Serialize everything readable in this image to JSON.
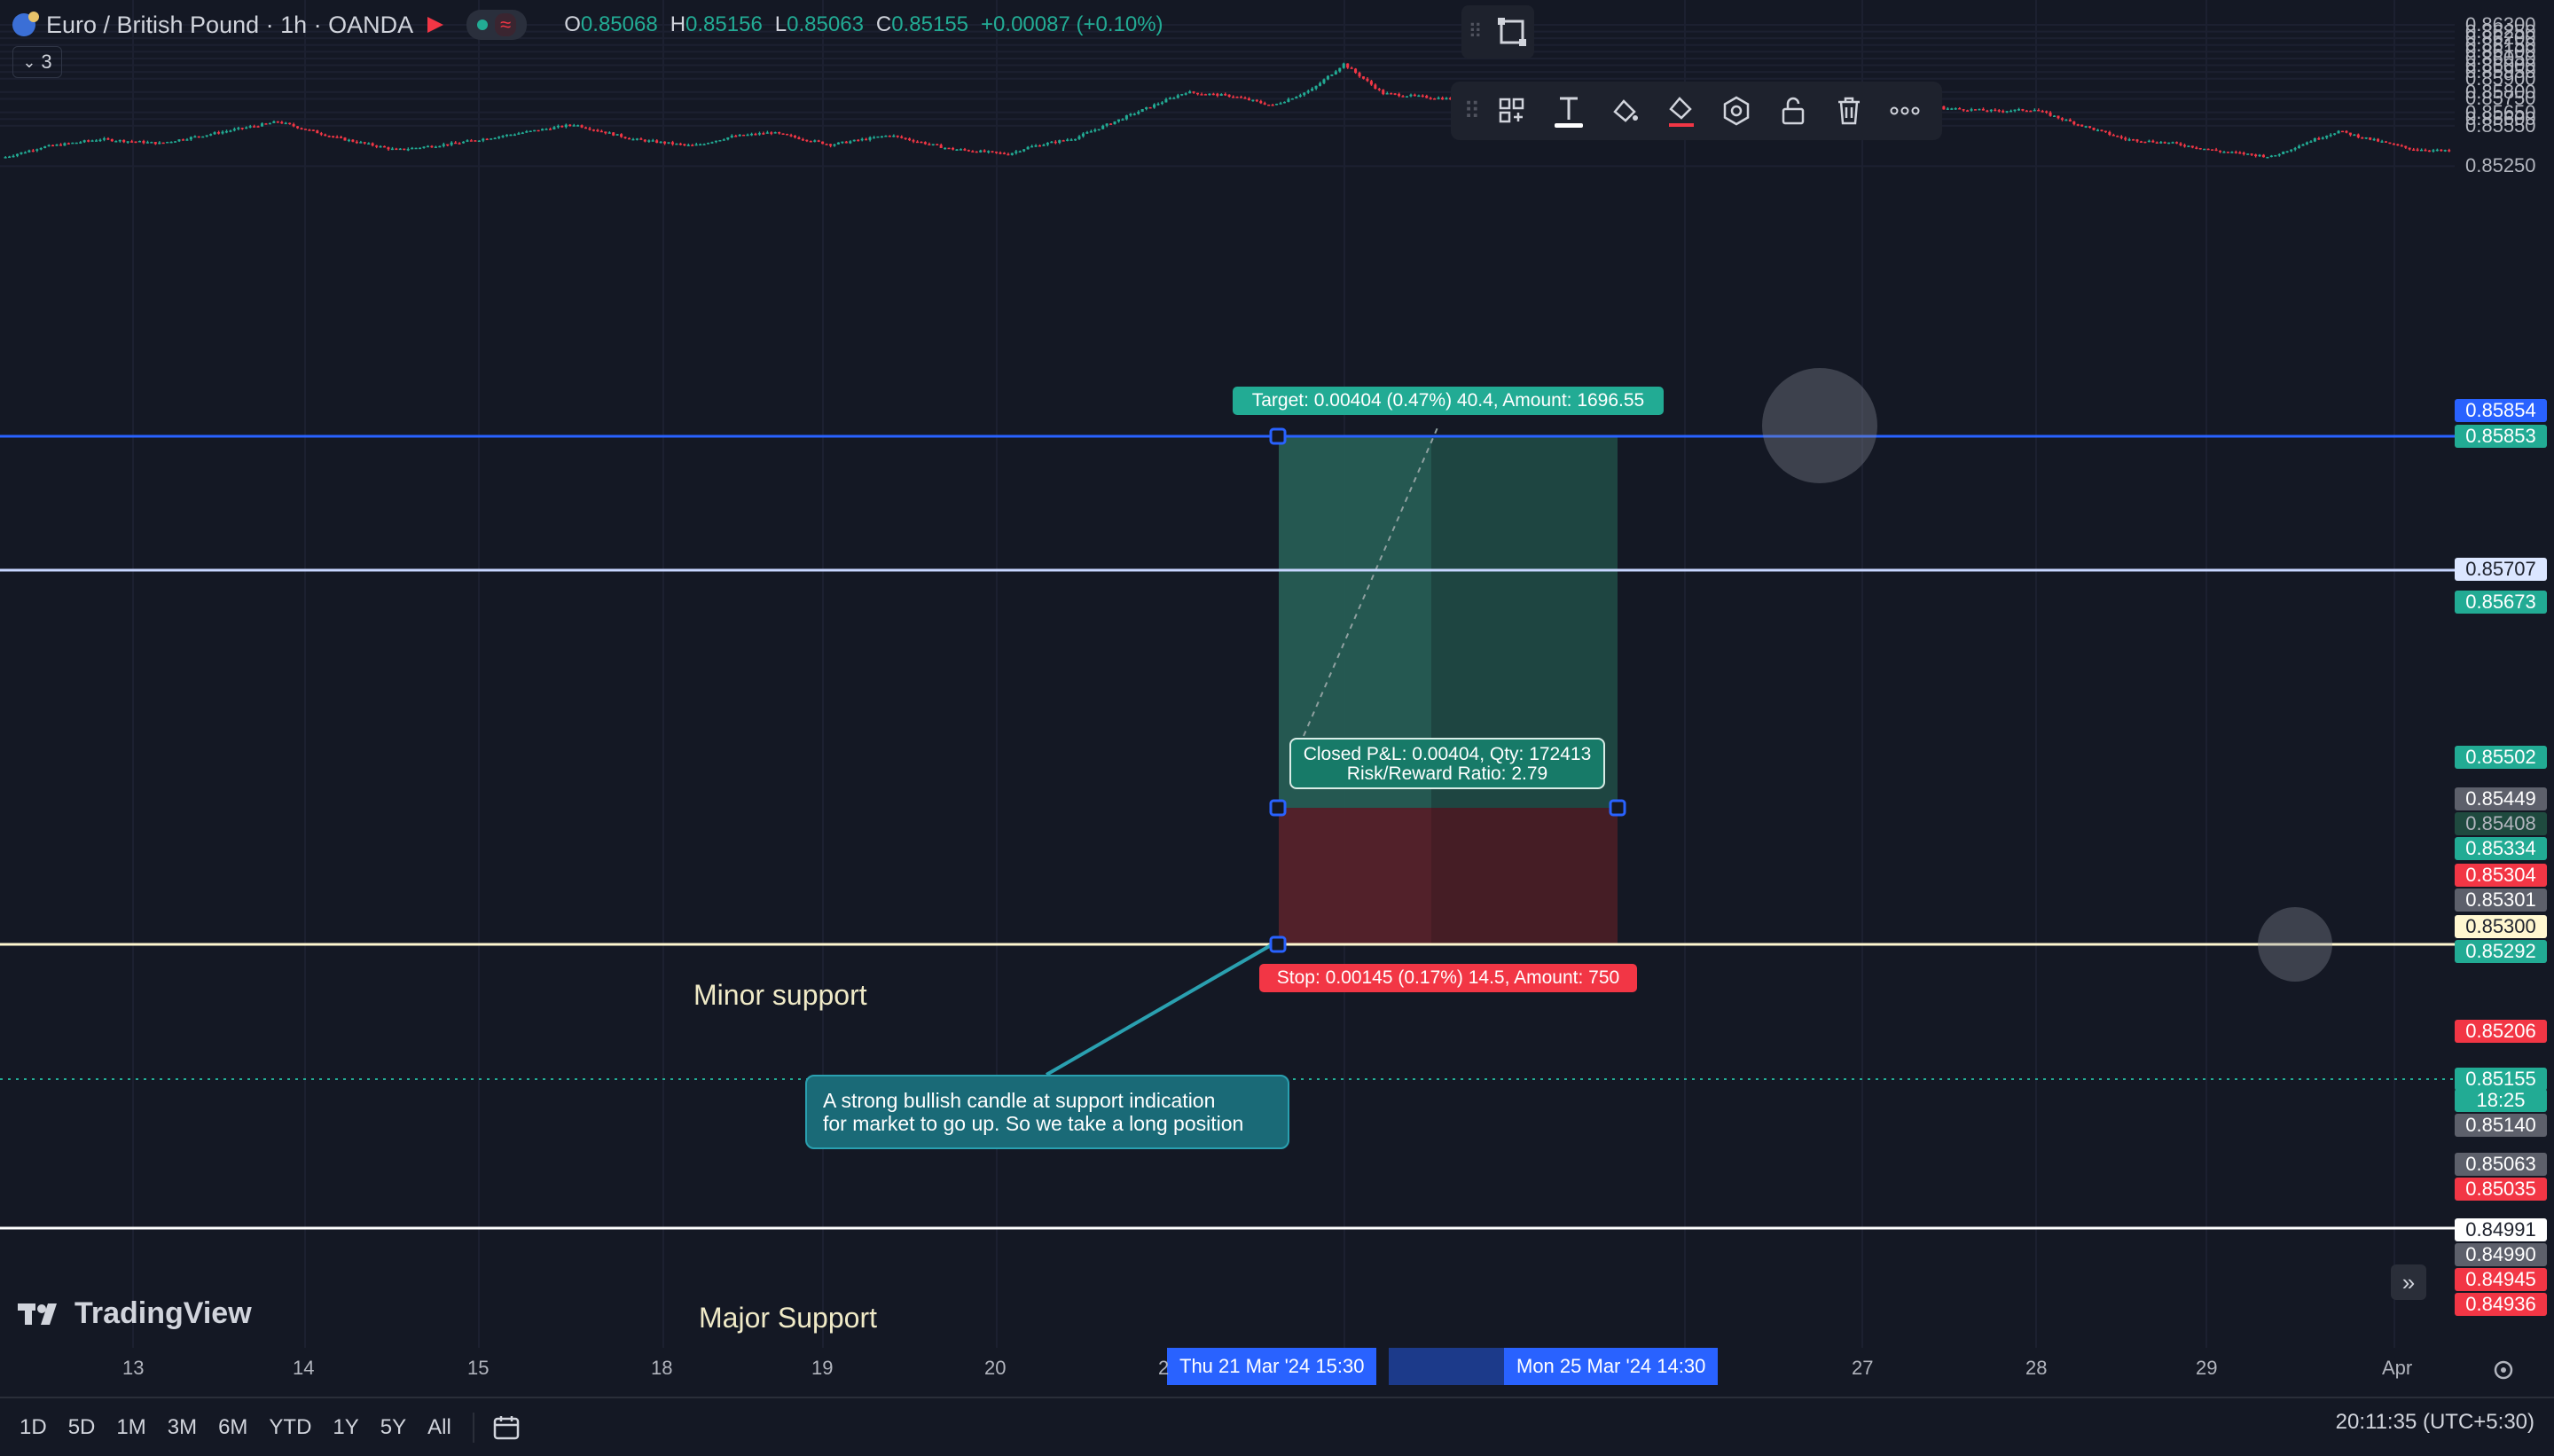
{
  "header": {
    "symbol": "Euro / British Pound · 1h · OANDA",
    "ohlc": [
      {
        "k": "O",
        "v": "0.85068"
      },
      {
        "k": "H",
        "v": "0.85156"
      },
      {
        "k": "L",
        "v": "0.85063"
      },
      {
        "k": "C",
        "v": "0.85155"
      },
      {
        "k": "",
        "v": "+0.00087 (+0.10%)"
      }
    ],
    "indicator_count": "3"
  },
  "toolbar": {
    "items": [
      "drag-handle-icon",
      "templates-icon",
      "text-icon",
      "fill-bucket-icon",
      "line-color-icon",
      "settings-hexagon-icon",
      "unlock-icon",
      "trash-icon",
      "more-icon"
    ]
  },
  "labels": {
    "target": "Target: 0.00404 (0.47%) 40.4, Amount: 1696.55",
    "stop": "Stop: 0.00145 (0.17%) 14.5, Amount: 750",
    "pnl_line1": "Closed P&L: 0.00404, Qty: 172413",
    "pnl_line2": "Risk/Reward Ratio: 2.79",
    "minor_support": "Minor support",
    "major_support": "Major Support",
    "callout_line1": "A strong bullish candle at support indication",
    "callout_line2": "for market to go up. So we take a long position"
  },
  "price_axis": {
    "ticks": [
      "0.86300",
      "0.86250",
      "0.86200",
      "0.86150",
      "0.86100",
      "0.86050",
      "0.86000",
      "0.85950",
      "0.85900",
      "0.85800",
      "0.85750",
      "0.85650",
      "0.85600",
      "0.85550",
      "0.85250"
    ],
    "labels": [
      {
        "text": "0.85854",
        "bg": "#2962ff",
        "fg": "#ffffff"
      },
      {
        "text": "0.85853",
        "bg": "#22ab94",
        "fg": "#ffffff"
      },
      {
        "text": "0.85707",
        "bg": "#dbe6ff",
        "fg": "#1e222d"
      },
      {
        "text": "0.85673",
        "bg": "#22ab94",
        "fg": "#ffffff"
      },
      {
        "text": "0.85502",
        "bg": "#22ab94",
        "fg": "#ffffff"
      },
      {
        "text": "0.85449",
        "bg": "#5d606b",
        "fg": "#ffffff"
      },
      {
        "text": "0.85408",
        "bg": "#1f4a3f",
        "fg": "#b2b5be"
      },
      {
        "text": "0.85334",
        "bg": "#22ab94",
        "fg": "#ffffff"
      },
      {
        "text": "0.85304",
        "bg": "#f23645",
        "fg": "#ffffff"
      },
      {
        "text": "0.85301",
        "bg": "#5d606b",
        "fg": "#ffffff"
      },
      {
        "text": "0.85300",
        "bg": "#fff7d0",
        "fg": "#1e222d"
      },
      {
        "text": "0.85292",
        "bg": "#22ab94",
        "fg": "#ffffff"
      },
      {
        "text": "0.85206",
        "bg": "#f23645",
        "fg": "#ffffff"
      },
      {
        "text": "0.85155",
        "bg": "#22ab94",
        "fg": "#ffffff"
      },
      {
        "text": "18:25",
        "bg": "#22ab94",
        "fg": "#ffffff"
      },
      {
        "text": "0.85140",
        "bg": "#5d606b",
        "fg": "#ffffff"
      },
      {
        "text": "0.85063",
        "bg": "#5d606b",
        "fg": "#ffffff"
      },
      {
        "text": "0.85035",
        "bg": "#f23645",
        "fg": "#ffffff"
      },
      {
        "text": "0.84991",
        "bg": "#ffffff",
        "fg": "#1e222d"
      },
      {
        "text": "0.84990",
        "bg": "#5d606b",
        "fg": "#ffffff"
      },
      {
        "text": "0.84945",
        "bg": "#f23645",
        "fg": "#ffffff"
      },
      {
        "text": "0.84936",
        "bg": "#f23645",
        "fg": "#ffffff"
      }
    ]
  },
  "time_axis": {
    "ticks": [
      "13",
      "14",
      "15",
      "18",
      "19",
      "20",
      "2",
      "27",
      "28",
      "29",
      "Apr"
    ],
    "highlight_start": "Thu 21 Mar '24   15:30",
    "highlight_end": "Mon 25 Mar '24   14:30"
  },
  "bottom_bar": {
    "ranges": [
      "1D",
      "5D",
      "1M",
      "3M",
      "6M",
      "YTD",
      "1Y",
      "5Y",
      "All"
    ],
    "clock": "20:11:35 (UTC+5:30)",
    "brand": "TradingView"
  },
  "colors": {
    "up": "#22ab94",
    "down": "#f23645",
    "background": "#141824",
    "target_zone": "#1f4a45",
    "stop_zone": "#4a1e26",
    "blue_line": "#2962ff"
  },
  "chart_data": {
    "type": "candlestick",
    "symbol": "EURGBP",
    "interval": "1h",
    "x_labels": [
      "13",
      "14",
      "15",
      "18",
      "19",
      "20",
      "21",
      "25",
      "27",
      "28",
      "29",
      "Apr"
    ],
    "ylim": [
      0.849,
      0.8632
    ],
    "horizontal_levels": [
      0.85854,
      0.85707,
      0.853,
      0.84991
    ],
    "position": {
      "side": "long",
      "entry": 0.85449,
      "target": 0.85853,
      "stop": 0.85304,
      "entry_time": "Thu 21 Mar '24 15:30",
      "exit_time": "Mon 25 Mar '24 14:30"
    },
    "close_path": [
      [
        0,
        0.8531
      ],
      [
        10,
        0.8539
      ],
      [
        25,
        0.8545
      ],
      [
        40,
        0.8542
      ],
      [
        55,
        0.855
      ],
      [
        70,
        0.8558
      ],
      [
        85,
        0.8546
      ],
      [
        100,
        0.8537
      ],
      [
        115,
        0.8542
      ],
      [
        130,
        0.8549
      ],
      [
        145,
        0.8556
      ],
      [
        160,
        0.8545
      ],
      [
        175,
        0.854
      ],
      [
        185,
        0.8547
      ],
      [
        195,
        0.855
      ],
      [
        210,
        0.8541
      ],
      [
        225,
        0.8548
      ],
      [
        240,
        0.8538
      ],
      [
        255,
        0.8534
      ],
      [
        260,
        0.8539
      ],
      [
        272,
        0.8546
      ],
      [
        290,
        0.8568
      ],
      [
        300,
        0.858
      ],
      [
        312,
        0.8577
      ],
      [
        322,
        0.857
      ],
      [
        332,
        0.8582
      ],
      [
        340,
        0.8601
      ],
      [
        350,
        0.8579
      ],
      [
        362,
        0.8576
      ],
      [
        372,
        0.8574
      ],
      [
        382,
        0.8577
      ],
      [
        392,
        0.8564
      ],
      [
        405,
        0.8574
      ],
      [
        420,
        0.8573
      ],
      [
        432,
        0.8574
      ],
      [
        445,
        0.8579
      ],
      [
        455,
        0.8575
      ],
      [
        470,
        0.8578
      ],
      [
        480,
        0.8579
      ],
      [
        492,
        0.8568
      ],
      [
        505,
        0.8566
      ],
      [
        515,
        0.8567
      ],
      [
        525,
        0.8557
      ],
      [
        538,
        0.8545
      ],
      [
        550,
        0.8542
      ],
      [
        562,
        0.8536
      ],
      [
        575,
        0.8532
      ],
      [
        585,
        0.8544
      ],
      [
        592,
        0.8551
      ],
      [
        600,
        0.8545
      ],
      [
        610,
        0.8538
      ],
      [
        620,
        0.8536
      ]
    ]
  }
}
